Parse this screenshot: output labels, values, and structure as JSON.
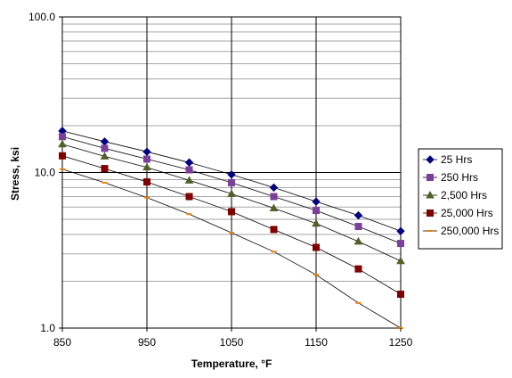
{
  "chart_data": {
    "type": "line",
    "xlabel": "Temperature, °F",
    "ylabel": "Stress, ksi",
    "x_scale": "linear",
    "y_scale": "log",
    "xlim": [
      850,
      1250
    ],
    "ylim": [
      1.0,
      100.0
    ],
    "x_ticks": [
      850,
      950,
      1050,
      1150,
      1250
    ],
    "x_tick_labels": [
      "850",
      "950",
      "1050",
      "1150",
      "1250"
    ],
    "y_tick_labels": [
      "1.0",
      "10.0",
      "100.0"
    ],
    "grid": true,
    "legend_position": "right",
    "x": [
      850,
      900,
      950,
      1000,
      1050,
      1100,
      1150,
      1200,
      1250
    ],
    "series": [
      {
        "name": "25 Hrs",
        "color": "#000080",
        "marker": "diamond",
        "values": [
          18.5,
          15.8,
          13.6,
          11.6,
          9.7,
          8.0,
          6.5,
          5.3,
          4.2
        ]
      },
      {
        "name": "250 Hrs",
        "color": "#7b3f9c",
        "marker": "square",
        "values": [
          17.0,
          14.3,
          12.2,
          10.4,
          8.6,
          7.0,
          5.7,
          4.5,
          3.5
        ]
      },
      {
        "name": "2,500 Hrs",
        "color": "#4f6228",
        "marker": "triangle",
        "values": [
          15.2,
          12.7,
          10.8,
          8.9,
          7.3,
          5.9,
          4.7,
          3.6,
          2.7
        ]
      },
      {
        "name": "25,000 Hrs",
        "color": "#800000",
        "marker": "square",
        "values": [
          12.8,
          10.6,
          8.7,
          7.0,
          5.6,
          4.3,
          3.3,
          2.4,
          1.65
        ]
      },
      {
        "name": "250,000 Hrs",
        "color": "#f07f09",
        "marker": "dash",
        "values": [
          10.5,
          8.6,
          6.9,
          5.4,
          4.1,
          3.1,
          2.2,
          1.45,
          1.0
        ]
      }
    ]
  }
}
